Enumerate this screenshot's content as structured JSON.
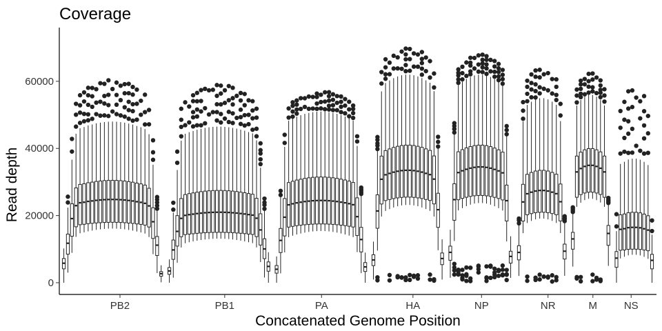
{
  "chart_data": {
    "type": "boxplot",
    "title": "Coverage",
    "xlabel": "Concatenated Genome Position",
    "ylabel": "Read depth",
    "ylim": [
      -3500,
      76000
    ],
    "y_ticks": [
      0,
      20000,
      40000,
      60000
    ],
    "grid": false,
    "legend": "none",
    "colors": {
      "box_stroke": "#222222",
      "box_fill": "#ffffff",
      "outlier": "#222222",
      "text": "#333333"
    },
    "segments": [
      {
        "name": "PB2",
        "start": 0.0,
        "end": 24.4,
        "label_pos": 14.0,
        "edge_low": [
          3500,
          2000
        ],
        "edge_high": [
          0,
          1000
        ],
        "peak": {
          "median": 24800,
          "q1": 18000,
          "q3": 30500,
          "wmax": 48000,
          "outlier_max": 61500
        }
      },
      {
        "name": "PB1",
        "start": 25.4,
        "end": 50.2,
        "label_pos": 39.2,
        "edge_low": [
          1500,
          2000
        ],
        "edge_high": [
          2500,
          3000
        ],
        "peak": {
          "median": 21000,
          "q1": 15000,
          "q3": 27500,
          "wmax": 46500,
          "outlier_max": 60000
        }
      },
      {
        "name": "PA",
        "start": 51.2,
        "end": 73.5,
        "label_pos": 62.5,
        "edge_low": [
          1200,
          2000
        ],
        "edge_high": [
          2000,
          2500
        ],
        "peak": {
          "median": 24500,
          "q1": 17500,
          "q3": 31500,
          "wmax": 51000,
          "outlier_max": 57500
        }
      },
      {
        "name": "HA",
        "start": 74.5,
        "end": 92.0,
        "label_pos": 84.5,
        "edge_low": [
          1500,
          2000
        ],
        "edge_high": [
          3000,
          2000
        ],
        "peak": {
          "median": 33500,
          "q1": 25500,
          "q3": 41000,
          "wmax": 62000,
          "outlier_max": 71000
        }
      },
      {
        "name": "NP",
        "start": 93.0,
        "end": 108.5,
        "label_pos": 101.0,
        "edge_low": [
          3000,
          3000
        ],
        "edge_high": [
          2000,
          1500
        ],
        "peak": {
          "median": 34500,
          "q1": 26000,
          "q3": 41000,
          "wmax": 62000,
          "outlier_max": 68500
        }
      },
      {
        "name": "NR",
        "start": 109.5,
        "end": 121.5,
        "label_pos": 117.0,
        "edge_low": [
          2000,
          1500
        ],
        "edge_high": [
          2000,
          2500
        ],
        "peak": {
          "median": 27500,
          "q1": 21000,
          "q3": 33500,
          "wmax": 55000,
          "outlier_max": 64500
        }
      },
      {
        "name": "M",
        "start": 122.5,
        "end": 132.0,
        "label_pos": 127.8,
        "edge_low": [
          1500,
          2000
        ],
        "edge_high": [
          2000,
          4000
        ],
        "peak": {
          "median": 35000,
          "q1": 27000,
          "q3": 40000,
          "wmax": 56000,
          "outlier_max": 63000
        }
      },
      {
        "name": "NS",
        "start": 133.0,
        "end": 142.5,
        "label_pos": 137.0,
        "edge_low": [
          2500,
          6500
        ],
        "edge_high": [
          3000,
          1500
        ],
        "peak": {
          "median": 16500,
          "q1": 10000,
          "q3": 21000,
          "wmax": 37000,
          "outlier_max": 60500
        }
      }
    ]
  }
}
